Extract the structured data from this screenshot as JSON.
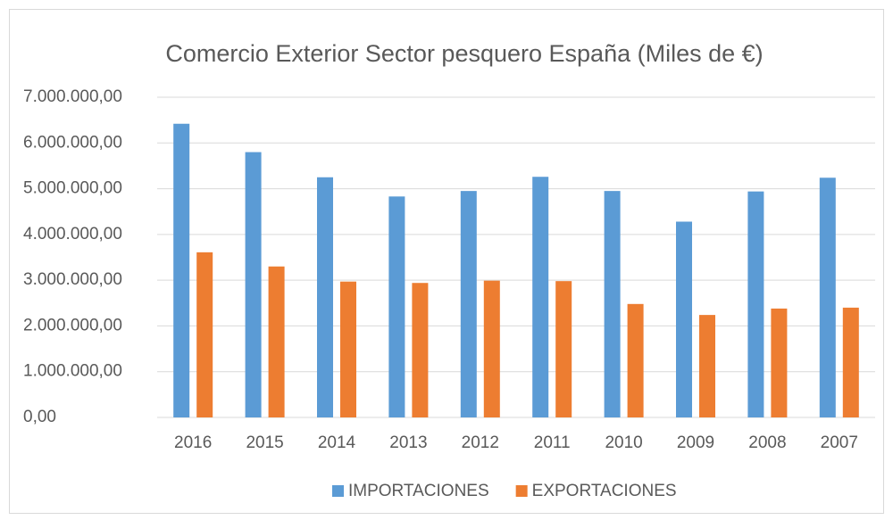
{
  "chart_data": {
    "type": "bar",
    "title": "Comercio Exterior Sector pesquero España (Miles de €)",
    "categories": [
      "2016",
      "2015",
      "2014",
      "2013",
      "2012",
      "2011",
      "2010",
      "2009",
      "2008",
      "2007"
    ],
    "series": [
      {
        "name": "IMPORTACIONES",
        "color": "#5b9bd5",
        "values": [
          6420000,
          5800000,
          5250000,
          4830000,
          4950000,
          5260000,
          4950000,
          4280000,
          4940000,
          5240000
        ]
      },
      {
        "name": "EXPORTACIONES",
        "color": "#ed7d31",
        "values": [
          3610000,
          3300000,
          2970000,
          2940000,
          2990000,
          2980000,
          2480000,
          2240000,
          2380000,
          2400000
        ]
      }
    ],
    "ylim": [
      0,
      7000000
    ],
    "yticks": [
      {
        "value": 0,
        "label": "0,00"
      },
      {
        "value": 1000000,
        "label": "1.000.000,00"
      },
      {
        "value": 2000000,
        "label": "2.000.000,00"
      },
      {
        "value": 3000000,
        "label": "3.000.000,00"
      },
      {
        "value": 4000000,
        "label": "4.000.000,00"
      },
      {
        "value": 5000000,
        "label": "5.000.000,00"
      },
      {
        "value": 6000000,
        "label": "6.000.000,00"
      },
      {
        "value": 7000000,
        "label": "7.000.000,00"
      }
    ],
    "grid": true,
    "legend": "bottom"
  }
}
